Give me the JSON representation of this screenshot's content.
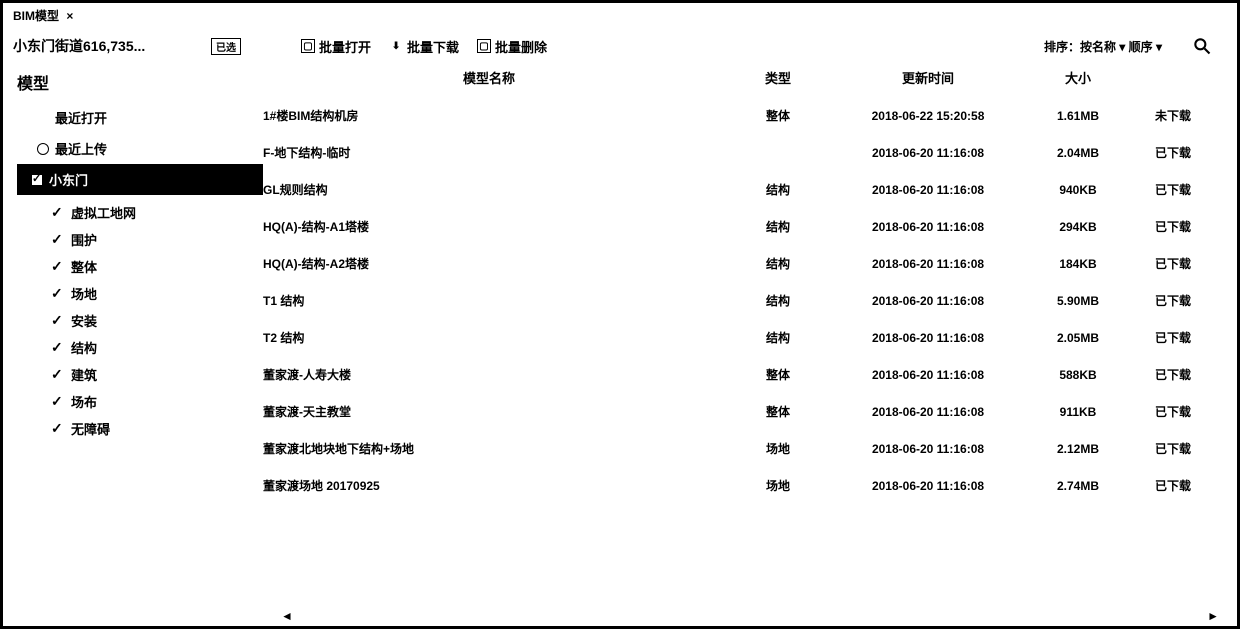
{
  "tab": {
    "label": "BIM模型",
    "close": "×"
  },
  "path": "小东门街道616,735...",
  "badge": "已选",
  "toolbar": {
    "open": {
      "label": "批量打开"
    },
    "download": {
      "label": "批量下载"
    },
    "delete": {
      "label": "批量删除"
    }
  },
  "right_label": "排序：按名称 ▾ 顺序 ▾",
  "sidebar": {
    "title": "模型",
    "items": [
      {
        "label": "最近打开",
        "type": "dot"
      },
      {
        "label": "最近上传",
        "type": "radio"
      },
      {
        "label": "小东门",
        "type": "selected"
      }
    ],
    "sub": [
      "虚拟工地网",
      "围护",
      "整体",
      "场地",
      "安装",
      "结构",
      "建筑",
      "场布",
      "无障碍"
    ]
  },
  "columns": {
    "extra": "模型名称",
    "type": "类型",
    "date": "更新时间",
    "size": "大小"
  },
  "rows": [
    {
      "name": "1#楼BIM结构机房",
      "type": "整体",
      "date": "2018-06-22 15:20:58",
      "size": "1.61MB",
      "status": "未下载"
    },
    {
      "name": "F-地下结构-临时",
      "type": "",
      "date": "2018-06-20 11:16:08",
      "size": "2.04MB",
      "status": "已下载"
    },
    {
      "name": "GL规则结构",
      "type": "结构",
      "date": "2018-06-20 11:16:08",
      "size": "940KB",
      "status": "已下载"
    },
    {
      "name": "HQ(A)-结构-A1塔楼",
      "type": "结构",
      "date": "2018-06-20 11:16:08",
      "size": "294KB",
      "status": "已下载"
    },
    {
      "name": "HQ(A)-结构-A2塔楼",
      "type": "结构",
      "date": "2018-06-20 11:16:08",
      "size": "184KB",
      "status": "已下载"
    },
    {
      "name": "T1 结构",
      "type": "结构",
      "date": "2018-06-20 11:16:08",
      "size": "5.90MB",
      "status": "已下载"
    },
    {
      "name": "T2 结构",
      "type": "结构",
      "date": "2018-06-20 11:16:08",
      "size": "2.05MB",
      "status": "已下载"
    },
    {
      "name": "董家渡-人寿大楼",
      "type": "整体",
      "date": "2018-06-20 11:16:08",
      "size": "588KB",
      "status": "已下载"
    },
    {
      "name": "董家渡-天主教堂",
      "type": "整体",
      "date": "2018-06-20 11:16:08",
      "size": "911KB",
      "status": "已下载"
    },
    {
      "name": "董家渡北地块地下结构+场地",
      "type": "场地",
      "date": "2018-06-20 11:16:08",
      "size": "2.12MB",
      "status": "已下载"
    },
    {
      "name": "董家渡场地 20170925",
      "type": "场地",
      "date": "2018-06-20 11:16:08",
      "size": "2.74MB",
      "status": "已下载"
    }
  ],
  "scroll": {
    "left": "◄",
    "right": "►"
  }
}
